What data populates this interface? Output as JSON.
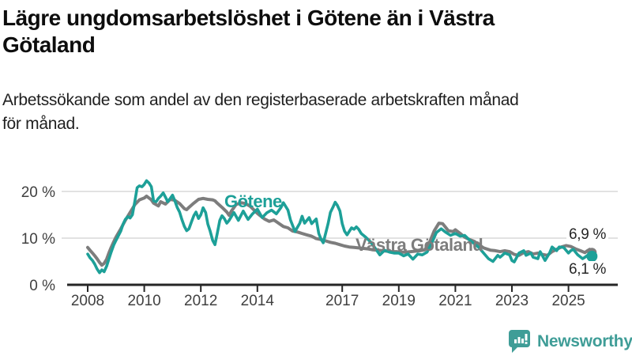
{
  "header": {
    "title_lines": [
      "Lägre ungdomsarbetslöshet i Götene än i Västra",
      "Götaland"
    ],
    "subtitle_lines": [
      "Arbetssökande som andel av den registerbaserade arbetskraften månad",
      "för månad."
    ]
  },
  "chart_data": {
    "type": "line",
    "title": "Lägre ungdomsarbetslöshet i Götene än i Västra Götaland",
    "subtitle": "Arbetssökande som andel av den registerbaserade arbetskraften månad för månad.",
    "unit": "%",
    "grid": true,
    "legend_position": "inline-labels",
    "x_axis": {
      "range": [
        2008,
        2026.3
      ],
      "ticks": [
        {
          "value": 2008,
          "label": "2008"
        },
        {
          "value": 2010,
          "label": "2010"
        },
        {
          "value": 2012,
          "label": "2012"
        },
        {
          "value": 2014,
          "label": "2014"
        },
        {
          "value": 2017,
          "label": "2017"
        },
        {
          "value": 2019,
          "label": "2019"
        },
        {
          "value": 2021,
          "label": "2021"
        },
        {
          "value": 2023,
          "label": "2023"
        },
        {
          "value": 2025,
          "label": "2025"
        }
      ]
    },
    "y_axis": {
      "range": [
        0,
        23.5
      ],
      "ticks": [
        {
          "value": 20,
          "label": "20 %"
        },
        {
          "value": 10,
          "label": "10 %"
        },
        {
          "value": 0,
          "label": "0 %"
        }
      ]
    },
    "colors": {
      "gotene": "#1da098",
      "vastra_gotaland": "#7d7d7d",
      "gridline": "#d9d9d9",
      "axis": "#262626",
      "tick_label": "#404040"
    },
    "series": [
      {
        "name": "Västra Götaland",
        "color": "#7d7d7d",
        "end_label": "6,9 %",
        "end_value": 6.9,
        "points": [
          [
            2008.0,
            8.0
          ],
          [
            2008.08,
            7.4
          ],
          [
            2008.17,
            6.8
          ],
          [
            2008.25,
            6.2
          ],
          [
            2008.33,
            5.6
          ],
          [
            2008.42,
            4.8
          ],
          [
            2008.5,
            4.2
          ],
          [
            2008.58,
            4.6
          ],
          [
            2008.67,
            5.5
          ],
          [
            2008.75,
            6.8
          ],
          [
            2008.83,
            8.0
          ],
          [
            2008.92,
            9.2
          ],
          [
            2009.0,
            10.2
          ],
          [
            2009.17,
            12.0
          ],
          [
            2009.33,
            13.8
          ],
          [
            2009.5,
            15.5
          ],
          [
            2009.67,
            17.2
          ],
          [
            2009.83,
            18.2
          ],
          [
            2010.0,
            18.6
          ],
          [
            2010.08,
            19.0
          ],
          [
            2010.25,
            18.2
          ],
          [
            2010.33,
            17.5
          ],
          [
            2010.5,
            16.9
          ],
          [
            2010.58,
            17.8
          ],
          [
            2010.75,
            17.3
          ],
          [
            2010.92,
            18.3
          ],
          [
            2011.08,
            18.1
          ],
          [
            2011.25,
            17.4
          ],
          [
            2011.42,
            16.3
          ],
          [
            2011.5,
            16.1
          ],
          [
            2011.58,
            16.6
          ],
          [
            2011.75,
            17.5
          ],
          [
            2011.92,
            18.3
          ],
          [
            2012.08,
            18.5
          ],
          [
            2012.25,
            18.3
          ],
          [
            2012.42,
            18.2
          ],
          [
            2012.5,
            18.0
          ],
          [
            2012.58,
            17.5
          ],
          [
            2012.75,
            16.6
          ],
          [
            2012.92,
            15.6
          ],
          [
            2013.0,
            14.9
          ],
          [
            2013.08,
            15.8
          ],
          [
            2013.25,
            17.2
          ],
          [
            2013.42,
            17.6
          ],
          [
            2013.58,
            17.4
          ],
          [
            2013.75,
            16.8
          ],
          [
            2013.92,
            15.8
          ],
          [
            2014.0,
            15.3
          ],
          [
            2014.08,
            14.9
          ],
          [
            2014.25,
            14.1
          ],
          [
            2014.42,
            13.6
          ],
          [
            2014.58,
            13.9
          ],
          [
            2014.75,
            13.2
          ],
          [
            2014.92,
            12.5
          ],
          [
            2015.08,
            12.2
          ],
          [
            2015.25,
            11.5
          ],
          [
            2015.42,
            11.3
          ],
          [
            2015.58,
            11.0
          ],
          [
            2015.75,
            10.7
          ],
          [
            2015.92,
            10.4
          ],
          [
            2016.08,
            9.9
          ],
          [
            2016.25,
            9.7
          ],
          [
            2016.42,
            9.4
          ],
          [
            2016.58,
            9.1
          ],
          [
            2016.75,
            8.9
          ],
          [
            2016.92,
            8.6
          ],
          [
            2017.08,
            8.3
          ],
          [
            2017.25,
            8.1
          ],
          [
            2017.42,
            8.0
          ],
          [
            2017.58,
            7.9
          ],
          [
            2017.75,
            7.8
          ],
          [
            2017.92,
            7.7
          ],
          [
            2018.08,
            7.5
          ],
          [
            2018.25,
            7.4
          ],
          [
            2018.42,
            7.3
          ],
          [
            2018.58,
            7.2
          ],
          [
            2018.75,
            7.1
          ],
          [
            2018.92,
            7.1
          ],
          [
            2019.08,
            7.0
          ],
          [
            2019.25,
            7.0
          ],
          [
            2019.42,
            7.1
          ],
          [
            2019.58,
            7.2
          ],
          [
            2019.75,
            7.3
          ],
          [
            2019.92,
            7.5
          ],
          [
            2020.08,
            9.0
          ],
          [
            2020.25,
            11.5
          ],
          [
            2020.42,
            13.2
          ],
          [
            2020.55,
            13.1
          ],
          [
            2020.67,
            12.2
          ],
          [
            2020.75,
            11.6
          ],
          [
            2020.92,
            11.4
          ],
          [
            2021.0,
            11.8
          ],
          [
            2021.17,
            11.0
          ],
          [
            2021.33,
            10.2
          ],
          [
            2021.5,
            9.7
          ],
          [
            2021.67,
            9.3
          ],
          [
            2021.83,
            8.6
          ],
          [
            2022.0,
            7.9
          ],
          [
            2022.25,
            7.4
          ],
          [
            2022.42,
            7.3
          ],
          [
            2022.58,
            7.1
          ],
          [
            2022.75,
            7.3
          ],
          [
            2022.92,
            7.1
          ],
          [
            2023.08,
            6.5
          ],
          [
            2023.25,
            6.3
          ],
          [
            2023.42,
            6.9
          ],
          [
            2023.58,
            7.1
          ],
          [
            2023.75,
            6.6
          ],
          [
            2023.92,
            6.8
          ],
          [
            2024.08,
            6.5
          ],
          [
            2024.25,
            6.3
          ],
          [
            2024.42,
            7.1
          ],
          [
            2024.58,
            7.6
          ],
          [
            2024.75,
            8.1
          ],
          [
            2024.92,
            8.4
          ],
          [
            2025.08,
            8.2
          ],
          [
            2025.25,
            7.7
          ],
          [
            2025.42,
            7.3
          ],
          [
            2025.58,
            6.9
          ],
          [
            2025.67,
            7.3
          ],
          [
            2025.75,
            7.6
          ],
          [
            2025.83,
            6.9
          ]
        ]
      },
      {
        "name": "Götene",
        "color": "#1da098",
        "end_label": "6,1 %",
        "end_value": 6.1,
        "points": [
          [
            2008.0,
            6.6
          ],
          [
            2008.08,
            5.8
          ],
          [
            2008.17,
            5.2
          ],
          [
            2008.25,
            4.4
          ],
          [
            2008.33,
            3.4
          ],
          [
            2008.42,
            2.6
          ],
          [
            2008.5,
            3.2
          ],
          [
            2008.58,
            2.8
          ],
          [
            2008.67,
            4.0
          ],
          [
            2008.75,
            5.5
          ],
          [
            2008.83,
            7.0
          ],
          [
            2008.92,
            8.5
          ],
          [
            2009.0,
            9.5
          ],
          [
            2009.17,
            11.5
          ],
          [
            2009.25,
            13.0
          ],
          [
            2009.33,
            14.0
          ],
          [
            2009.42,
            14.6
          ],
          [
            2009.5,
            14.3
          ],
          [
            2009.58,
            15.0
          ],
          [
            2009.67,
            18.0
          ],
          [
            2009.75,
            20.8
          ],
          [
            2009.83,
            21.2
          ],
          [
            2009.92,
            21.0
          ],
          [
            2010.0,
            21.5
          ],
          [
            2010.08,
            22.3
          ],
          [
            2010.17,
            21.8
          ],
          [
            2010.25,
            21.0
          ],
          [
            2010.33,
            18.0
          ],
          [
            2010.42,
            17.8
          ],
          [
            2010.5,
            18.5
          ],
          [
            2010.58,
            19.0
          ],
          [
            2010.67,
            19.7
          ],
          [
            2010.75,
            18.8
          ],
          [
            2010.83,
            17.8
          ],
          [
            2010.92,
            18.5
          ],
          [
            2011.0,
            19.2
          ],
          [
            2011.08,
            18.0
          ],
          [
            2011.17,
            16.5
          ],
          [
            2011.25,
            15.6
          ],
          [
            2011.33,
            14.0
          ],
          [
            2011.42,
            12.5
          ],
          [
            2011.5,
            11.6
          ],
          [
            2011.58,
            12.0
          ],
          [
            2011.67,
            13.5
          ],
          [
            2011.75,
            14.8
          ],
          [
            2011.83,
            15.6
          ],
          [
            2011.92,
            14.2
          ],
          [
            2012.0,
            15.0
          ],
          [
            2012.08,
            16.5
          ],
          [
            2012.17,
            15.5
          ],
          [
            2012.25,
            13.0
          ],
          [
            2012.33,
            11.5
          ],
          [
            2012.42,
            9.5
          ],
          [
            2012.5,
            8.6
          ],
          [
            2012.58,
            11.0
          ],
          [
            2012.67,
            13.8
          ],
          [
            2012.75,
            14.8
          ],
          [
            2012.83,
            14.2
          ],
          [
            2012.92,
            13.2
          ],
          [
            2013.0,
            13.8
          ],
          [
            2013.17,
            15.5
          ],
          [
            2013.33,
            13.8
          ],
          [
            2013.5,
            15.8
          ],
          [
            2013.67,
            14.0
          ],
          [
            2013.83,
            15.2
          ],
          [
            2014.0,
            16.2
          ],
          [
            2014.17,
            14.4
          ],
          [
            2014.33,
            15.4
          ],
          [
            2014.5,
            16.0
          ],
          [
            2014.67,
            15.2
          ],
          [
            2014.83,
            16.5
          ],
          [
            2014.92,
            17.6
          ],
          [
            2015.08,
            16.0
          ],
          [
            2015.17,
            13.9
          ],
          [
            2015.33,
            11.4
          ],
          [
            2015.5,
            13.2
          ],
          [
            2015.58,
            14.7
          ],
          [
            2015.67,
            13.2
          ],
          [
            2015.83,
            14.4
          ],
          [
            2015.92,
            13.1
          ],
          [
            2016.08,
            14.1
          ],
          [
            2016.17,
            11.0
          ],
          [
            2016.25,
            9.8
          ],
          [
            2016.33,
            9.0
          ],
          [
            2016.5,
            13.1
          ],
          [
            2016.58,
            15.5
          ],
          [
            2016.67,
            16.6
          ],
          [
            2016.75,
            17.7
          ],
          [
            2016.83,
            17.0
          ],
          [
            2016.92,
            15.8
          ],
          [
            2017.0,
            13.1
          ],
          [
            2017.08,
            11.5
          ],
          [
            2017.17,
            10.7
          ],
          [
            2017.33,
            12.2
          ],
          [
            2017.42,
            11.9
          ],
          [
            2017.5,
            12.4
          ],
          [
            2017.58,
            11.9
          ],
          [
            2017.67,
            11.0
          ],
          [
            2017.83,
            10.2
          ],
          [
            2018.0,
            9.2
          ],
          [
            2018.17,
            7.8
          ],
          [
            2018.33,
            6.4
          ],
          [
            2018.5,
            7.4
          ],
          [
            2018.67,
            7.0
          ],
          [
            2018.83,
            6.8
          ],
          [
            2019.0,
            6.8
          ],
          [
            2019.17,
            6.2
          ],
          [
            2019.33,
            6.6
          ],
          [
            2019.5,
            5.5
          ],
          [
            2019.67,
            6.6
          ],
          [
            2019.83,
            6.4
          ],
          [
            2020.0,
            7.0
          ],
          [
            2020.17,
            9.0
          ],
          [
            2020.33,
            11.2
          ],
          [
            2020.5,
            12.0
          ],
          [
            2020.67,
            11.2
          ],
          [
            2020.83,
            10.6
          ],
          [
            2021.0,
            11.0
          ],
          [
            2021.17,
            10.4
          ],
          [
            2021.33,
            10.6
          ],
          [
            2021.5,
            9.6
          ],
          [
            2021.67,
            8.8
          ],
          [
            2021.83,
            8.0
          ],
          [
            2022.0,
            6.8
          ],
          [
            2022.17,
            5.6
          ],
          [
            2022.33,
            5.0
          ],
          [
            2022.5,
            6.3
          ],
          [
            2022.58,
            5.9
          ],
          [
            2022.75,
            6.8
          ],
          [
            2022.92,
            6.4
          ],
          [
            2023.0,
            5.2
          ],
          [
            2023.08,
            4.9
          ],
          [
            2023.25,
            6.8
          ],
          [
            2023.42,
            7.3
          ],
          [
            2023.5,
            6.3
          ],
          [
            2023.67,
            6.8
          ],
          [
            2023.75,
            5.9
          ],
          [
            2023.92,
            5.6
          ],
          [
            2024.0,
            7.1
          ],
          [
            2024.17,
            5.2
          ],
          [
            2024.33,
            6.8
          ],
          [
            2024.42,
            8.1
          ],
          [
            2024.58,
            7.3
          ],
          [
            2024.67,
            8.1
          ],
          [
            2024.83,
            8.0
          ],
          [
            2025.0,
            6.8
          ],
          [
            2025.08,
            7.3
          ],
          [
            2025.17,
            7.6
          ],
          [
            2025.33,
            6.4
          ],
          [
            2025.5,
            5.6
          ],
          [
            2025.58,
            5.9
          ],
          [
            2025.67,
            6.3
          ],
          [
            2025.75,
            5.6
          ],
          [
            2025.83,
            6.1
          ]
        ]
      }
    ]
  },
  "footer": {
    "brand": "Newsworthy"
  }
}
